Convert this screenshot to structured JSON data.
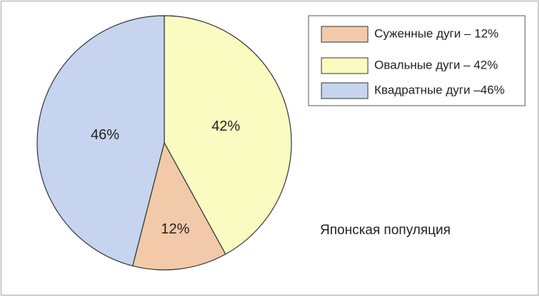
{
  "chart_data": {
    "type": "pie",
    "categories": [
      "Суженные дуги – 12%",
      "Овальные дуги – 42%",
      "Квадратные дуги –46%"
    ],
    "values": [
      12,
      42,
      46
    ],
    "value_labels": [
      "12%",
      "42%",
      "46%"
    ],
    "colors": [
      "#f3caa9",
      "#fafbc0",
      "#c6d4ef"
    ],
    "annotation": "Японская популяция",
    "legend": "upper right"
  }
}
